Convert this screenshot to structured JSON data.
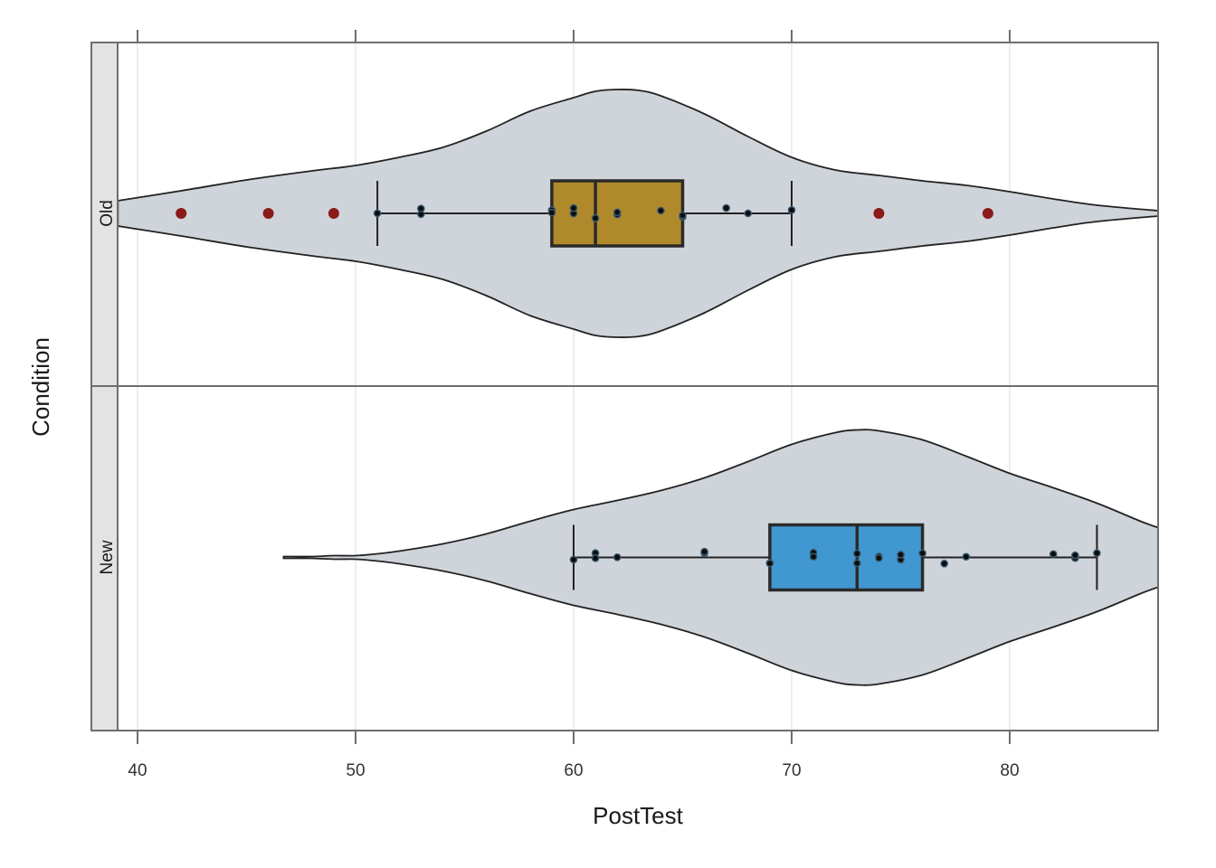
{
  "chart_data": {
    "type": "violin-box",
    "orientation": "horizontal",
    "title": "",
    "xlabel": "PostTest",
    "ylabel": "Condition",
    "xlim": [
      39.1,
      86.8
    ],
    "xticks": [
      40,
      50,
      60,
      70,
      80
    ],
    "grid": true,
    "facets": [
      "Old",
      "New"
    ],
    "colors": {
      "violin_fill": "#cfd4da",
      "violin_stroke": "#222222",
      "box_old": "#b08a2a",
      "box_new": "#4197d0",
      "outlier": "#8b1a1a",
      "point": "#0d0d0d",
      "point_edge": "#3a5a70",
      "grid": "#dcdcdc",
      "panel_border": "#6e6e6e",
      "strip_fill": "#e3e3e3"
    },
    "series": [
      {
        "name": "Old",
        "box": {
          "whisker_low": 51,
          "q1": 59,
          "median": 61,
          "q3": 65,
          "whisker_high": 70
        },
        "outliers": [
          42,
          46,
          49,
          74,
          79
        ],
        "points": [
          51,
          53,
          53,
          59,
          59,
          60,
          60,
          61,
          62,
          62,
          64,
          65,
          65,
          67,
          68,
          70
        ],
        "violin_profile": {
          "x": [
            39.1,
            42,
            45,
            48,
            50,
            52,
            54,
            56,
            58,
            60,
            61,
            62,
            63,
            64,
            66,
            68,
            70,
            72,
            74,
            76,
            78,
            80,
            82,
            84,
            86.8
          ],
          "half_width": [
            14,
            25,
            37,
            47,
            53,
            62,
            73,
            91,
            113,
            128,
            135,
            137,
            136,
            130,
            110,
            85,
            62,
            48,
            42,
            36,
            31,
            24,
            16,
            9,
            3
          ]
        }
      },
      {
        "name": "New",
        "box": {
          "whisker_low": 60,
          "q1": 69,
          "median": 73,
          "q3": 76,
          "whisker_high": 84
        },
        "outliers": [],
        "points": [
          60,
          61,
          61,
          62,
          66,
          66,
          69,
          69,
          71,
          71,
          73,
          73,
          74,
          74,
          75,
          75,
          76,
          77,
          78,
          82,
          83,
          83,
          84
        ],
        "violin_profile": {
          "x": [
            46.7,
            48,
            49,
            50,
            51,
            52,
            54,
            56,
            58,
            60,
            62,
            64,
            66,
            68,
            70,
            72,
            73,
            74,
            76,
            78,
            80,
            82,
            84,
            86,
            86.8
          ],
          "half_width": [
            1,
            1,
            2,
            2,
            4,
            7,
            15,
            26,
            40,
            53,
            63,
            74,
            88,
            106,
            125,
            138,
            141,
            140,
            130,
            112,
            93,
            77,
            60,
            40,
            33
          ]
        }
      }
    ]
  },
  "axes": {
    "x_title": "PostTest",
    "y_title": "Condition",
    "x_tick_labels": [
      "40",
      "50",
      "60",
      "70",
      "80"
    ]
  },
  "strips": [
    "Old",
    "New"
  ]
}
